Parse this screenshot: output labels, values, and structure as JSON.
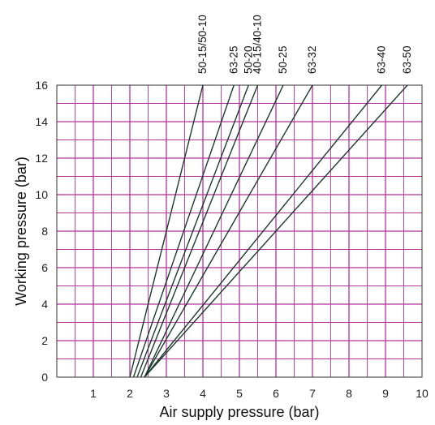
{
  "chart_data": {
    "type": "line",
    "xlabel": "Air supply pressure (bar)",
    "ylabel": "Working pressure (bar)",
    "xlim": [
      0,
      10
    ],
    "ylim": [
      0,
      16
    ],
    "x_ticks": [
      1,
      2,
      3,
      4,
      5,
      6,
      7,
      8,
      9,
      10
    ],
    "y_ticks": [
      0,
      2,
      4,
      6,
      8,
      10,
      12,
      14,
      16
    ],
    "grid": true,
    "grid_color": "#b5339b",
    "line_color": "#1c3a2c",
    "series": [
      {
        "name": "50-15/50-10",
        "points": [
          [
            2.0,
            0
          ],
          [
            4.0,
            16
          ]
        ]
      },
      {
        "name": "63-25",
        "points": [
          [
            2.1,
            0
          ],
          [
            4.85,
            16
          ]
        ]
      },
      {
        "name": "50-20",
        "points": [
          [
            2.2,
            0
          ],
          [
            5.25,
            16
          ]
        ]
      },
      {
        "name": "40-15/40-10",
        "points": [
          [
            2.3,
            0
          ],
          [
            5.5,
            16
          ]
        ]
      },
      {
        "name": "50-25",
        "points": [
          [
            2.4,
            0
          ],
          [
            6.2,
            16
          ]
        ]
      },
      {
        "name": "63-32",
        "points": [
          [
            2.4,
            0
          ],
          [
            7.0,
            16
          ]
        ]
      },
      {
        "name": "63-40",
        "points": [
          [
            2.4,
            0
          ],
          [
            8.9,
            16
          ]
        ]
      },
      {
        "name": "63-50",
        "points": [
          [
            2.4,
            0
          ],
          [
            9.6,
            16
          ]
        ]
      }
    ]
  }
}
